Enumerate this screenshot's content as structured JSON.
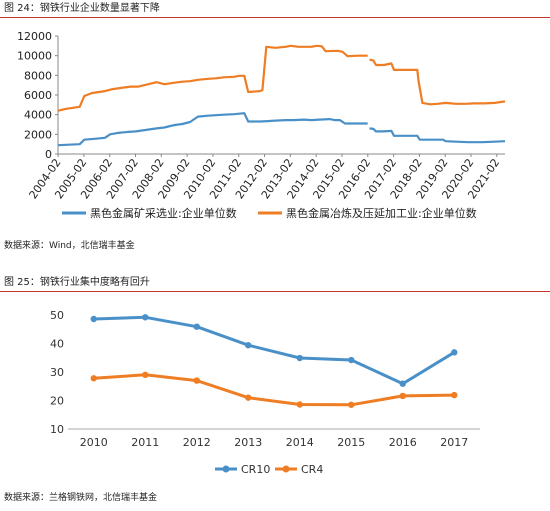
{
  "figure1": {
    "title": "图 24：钢铁行业企业数量显著下降",
    "source": "数据来源：Wind，北信瑞丰基金"
  },
  "figure2": {
    "title": "图 25：钢铁行业集中度略有回升",
    "source": "数据来源：兰格钢铁网，北信瑞丰基金"
  },
  "chart_data": [
    {
      "type": "line",
      "title": "钢铁行业企业数量显著下降",
      "xlabel": "",
      "ylabel": "",
      "ylim": [
        0,
        12000
      ],
      "yticks": [
        0,
        2000,
        4000,
        6000,
        8000,
        10000,
        12000
      ],
      "xticks": [
        "2004-02",
        "2005-02",
        "2006-02",
        "2007-02",
        "2008-02",
        "2009-02",
        "2010-02",
        "2011-02",
        "2012-02",
        "2013-02",
        "2014-02",
        "2015-02",
        "2016-02",
        "2017-02",
        "2018-02",
        "2019-02",
        "2020-02",
        "2021-02"
      ],
      "xrange": [
        2004.08,
        2021.4
      ],
      "legend_position": "bottom",
      "grid": false,
      "series": [
        {
          "name": "黑色金属矿采选业:企业单位数",
          "color": "#4a90c8",
          "segments": [
            [
              [
                2004.08,
                900
              ],
              [
                2004.5,
                950
              ],
              [
                2004.92,
                1000
              ],
              [
                2005.1,
                1450
              ],
              [
                2005.5,
                1550
              ],
              [
                2005.9,
                1650
              ],
              [
                2006.1,
                2000
              ],
              [
                2006.4,
                2150
              ],
              [
                2006.8,
                2250
              ],
              [
                2007.1,
                2300
              ],
              [
                2007.5,
                2450
              ],
              [
                2007.9,
                2600
              ],
              [
                2008.2,
                2700
              ],
              [
                2008.6,
                2950
              ],
              [
                2008.9,
                3050
              ],
              [
                2009.2,
                3250
              ],
              [
                2009.5,
                3800
              ],
              [
                2009.9,
                3900
              ],
              [
                2010.2,
                3950
              ],
              [
                2010.5,
                4000
              ],
              [
                2010.9,
                4050
              ],
              [
                2011.1,
                4100
              ],
              [
                2011.3,
                4150
              ],
              [
                2011.45,
                3300
              ],
              [
                2011.9,
                3300
              ],
              [
                2012.2,
                3350
              ],
              [
                2012.5,
                3400
              ],
              [
                2012.9,
                3450
              ],
              [
                2013.2,
                3450
              ],
              [
                2013.6,
                3500
              ],
              [
                2013.9,
                3450
              ],
              [
                2014.2,
                3500
              ],
              [
                2014.6,
                3550
              ],
              [
                2014.8,
                3450
              ],
              [
                2015.0,
                3450
              ],
              [
                2015.2,
                3100
              ],
              [
                2015.6,
                3100
              ],
              [
                2016.08,
                3100
              ]
            ],
            [
              [
                2016.15,
                2600
              ],
              [
                2016.3,
                2550
              ],
              [
                2016.4,
                2300
              ],
              [
                2016.7,
                2300
              ],
              [
                2017.0,
                2350
              ],
              [
                2017.1,
                1850
              ],
              [
                2017.6,
                1850
              ],
              [
                2018.0,
                1850
              ],
              [
                2018.1,
                1450
              ],
              [
                2018.6,
                1450
              ],
              [
                2019.0,
                1450
              ],
              [
                2019.1,
                1300
              ],
              [
                2019.5,
                1250
              ],
              [
                2020.0,
                1200
              ],
              [
                2020.5,
                1200
              ],
              [
                2021.0,
                1250
              ],
              [
                2021.4,
                1300
              ]
            ]
          ]
        },
        {
          "name": "黑色金属冶炼及压延加工业:企业单位数",
          "color": "#ee7d24",
          "segments": [
            [
              [
                2004.08,
                4400
              ],
              [
                2004.4,
                4600
              ],
              [
                2004.92,
                4800
              ],
              [
                2005.1,
                5900
              ],
              [
                2005.4,
                6200
              ],
              [
                2005.9,
                6400
              ],
              [
                2006.2,
                6600
              ],
              [
                2006.6,
                6750
              ],
              [
                2006.9,
                6850
              ],
              [
                2007.2,
                6850
              ],
              [
                2007.5,
                7050
              ],
              [
                2007.9,
                7300
              ],
              [
                2008.2,
                7100
              ],
              [
                2008.6,
                7250
              ],
              [
                2008.9,
                7350
              ],
              [
                2009.2,
                7400
              ],
              [
                2009.5,
                7550
              ],
              [
                2009.9,
                7650
              ],
              [
                2010.2,
                7700
              ],
              [
                2010.5,
                7800
              ],
              [
                2010.9,
                7850
              ],
              [
                2011.1,
                7950
              ],
              [
                2011.3,
                7950
              ],
              [
                2011.45,
                6300
              ],
              [
                2011.9,
                6400
              ],
              [
                2012.0,
                6500
              ],
              [
                2012.15,
                10900
              ],
              [
                2012.5,
                10800
              ],
              [
                2012.9,
                10900
              ],
              [
                2013.1,
                11000
              ],
              [
                2013.4,
                10900
              ],
              [
                2013.9,
                10900
              ],
              [
                2014.1,
                11000
              ],
              [
                2014.3,
                10950
              ],
              [
                2014.45,
                10450
              ],
              [
                2014.9,
                10500
              ],
              [
                2015.1,
                10400
              ],
              [
                2015.3,
                9950
              ],
              [
                2015.7,
                10000
              ],
              [
                2016.08,
                10000
              ]
            ],
            [
              [
                2016.15,
                9600
              ],
              [
                2016.3,
                9500
              ],
              [
                2016.4,
                9050
              ],
              [
                2016.7,
                9050
              ],
              [
                2017.0,
                9200
              ],
              [
                2017.1,
                8550
              ],
              [
                2017.5,
                8550
              ],
              [
                2018.0,
                8550
              ],
              [
                2018.05,
                7450
              ],
              [
                2018.2,
                5200
              ],
              [
                2018.5,
                5050
              ],
              [
                2018.8,
                5100
              ],
              [
                2019.1,
                5200
              ],
              [
                2019.5,
                5100
              ],
              [
                2019.9,
                5100
              ],
              [
                2020.2,
                5150
              ],
              [
                2020.6,
                5150
              ],
              [
                2021.0,
                5200
              ],
              [
                2021.4,
                5350
              ]
            ]
          ]
        }
      ]
    },
    {
      "type": "line",
      "title": "钢铁行业集中度略有回升",
      "xlabel": "",
      "ylabel": "",
      "categories": [
        "2010",
        "2011",
        "2012",
        "2013",
        "2014",
        "2015",
        "2016",
        "2017"
      ],
      "ylim": [
        10,
        50
      ],
      "yticks": [
        10,
        20,
        30,
        40,
        50
      ],
      "legend_position": "bottom",
      "grid": false,
      "series": [
        {
          "name": "CR10",
          "color": "#4a90c8",
          "values": [
            48.6,
            49.2,
            45.9,
            39.4,
            34.9,
            34.2,
            25.9,
            36.9
          ]
        },
        {
          "name": "CR4",
          "color": "#ee7d24",
          "values": [
            27.8,
            29.0,
            27.0,
            21.0,
            18.6,
            18.5,
            21.6,
            21.9
          ]
        }
      ]
    }
  ]
}
